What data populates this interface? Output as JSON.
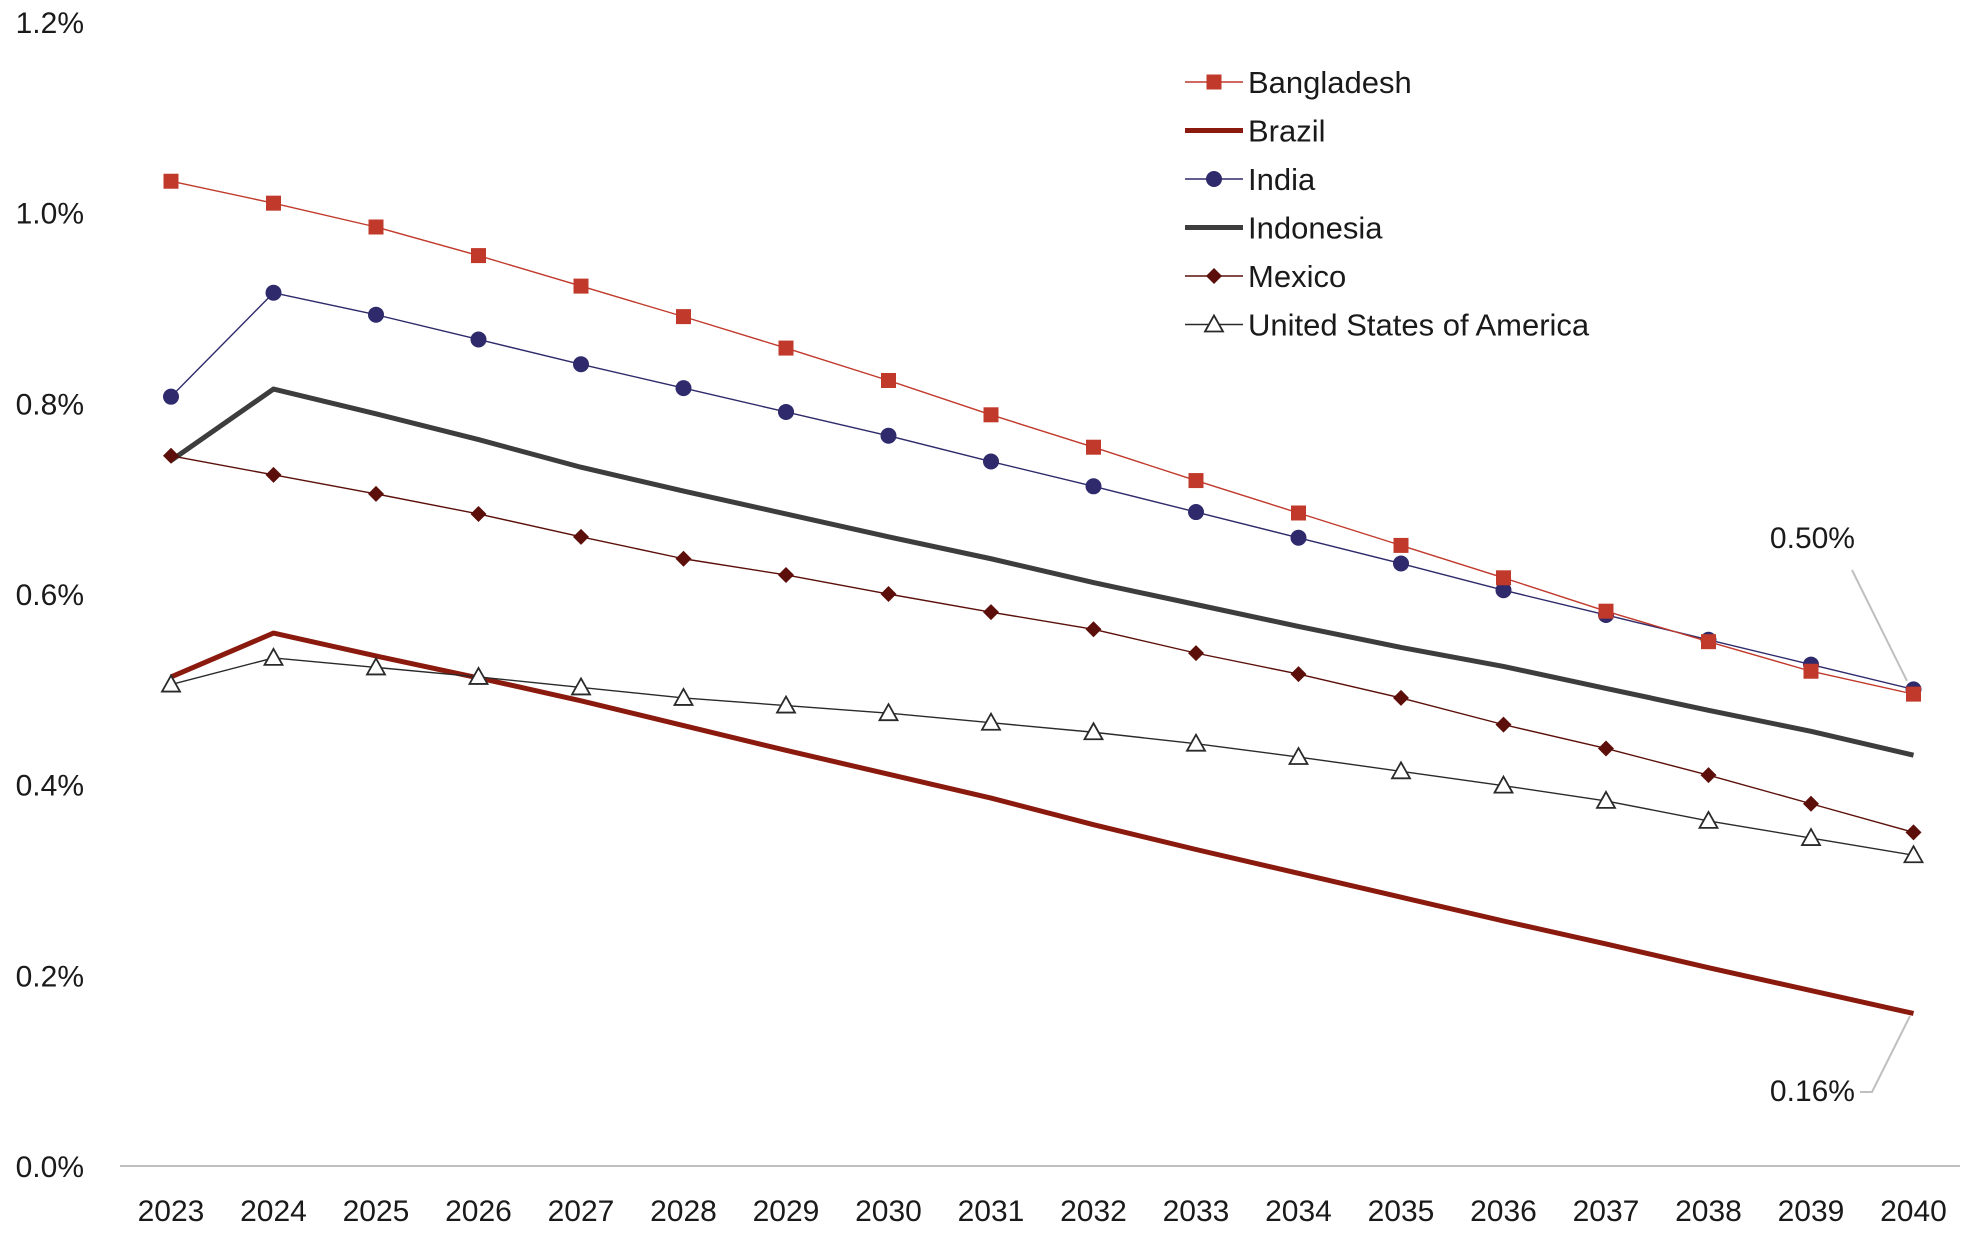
{
  "chart_data": {
    "type": "line",
    "title": "",
    "xlabel": "",
    "ylabel": "",
    "x": [
      "2023",
      "2024",
      "2025",
      "2026",
      "2027",
      "2028",
      "2029",
      "2030",
      "2031",
      "2032",
      "2033",
      "2034",
      "2035",
      "2036",
      "2037",
      "2038",
      "2039",
      "2040"
    ],
    "ylim": [
      0,
      1.2
    ],
    "yticks": [
      0,
      0.2,
      0.4,
      0.6,
      0.8,
      1.0,
      1.2
    ],
    "ytick_labels": [
      "0.0%",
      "0.2%",
      "0.4%",
      "0.6%",
      "0.8%",
      "1.0%",
      "1.2%"
    ],
    "grid": false,
    "legend_position": "top-right",
    "series": [
      {
        "name": "Bangladesh",
        "color": "#c0392b",
        "marker": "square",
        "line": "thin",
        "values": [
          1.033,
          1.01,
          0.985,
          0.955,
          0.923,
          0.891,
          0.858,
          0.824,
          0.788,
          0.754,
          0.719,
          0.685,
          0.651,
          0.617,
          0.582,
          0.55,
          0.519,
          0.495
        ]
      },
      {
        "name": "Brazil",
        "color": "#8b1a0e",
        "marker": "none",
        "line": "thick",
        "values": [
          0.513,
          0.559,
          0.535,
          0.512,
          0.488,
          0.462,
          0.436,
          0.411,
          0.386,
          0.358,
          0.332,
          0.307,
          0.282,
          0.257,
          0.233,
          0.208,
          0.184,
          0.16
        ]
      },
      {
        "name": "India",
        "color": "#2e2a6b",
        "marker": "circle",
        "line": "thin",
        "values": [
          0.807,
          0.916,
          0.893,
          0.867,
          0.841,
          0.816,
          0.791,
          0.766,
          0.739,
          0.713,
          0.686,
          0.659,
          0.632,
          0.604,
          0.578,
          0.552,
          0.526,
          0.5
        ]
      },
      {
        "name": "Indonesia",
        "color": "#3d3d3d",
        "marker": "none",
        "line": "thick",
        "values": [
          0.74,
          0.815,
          0.789,
          0.762,
          0.733,
          0.708,
          0.684,
          0.66,
          0.637,
          0.612,
          0.589,
          0.566,
          0.544,
          0.524,
          0.501,
          0.478,
          0.456,
          0.431
        ]
      },
      {
        "name": "Mexico",
        "color": "#5c0f0a",
        "marker": "diamond",
        "line": "thin",
        "values": [
          0.745,
          0.725,
          0.705,
          0.684,
          0.66,
          0.637,
          0.62,
          0.6,
          0.581,
          0.563,
          0.538,
          0.516,
          0.491,
          0.463,
          0.438,
          0.41,
          0.38,
          0.35
        ]
      },
      {
        "name": "United States of America",
        "color": "#2a2a2a",
        "marker": "triangle",
        "line": "thin",
        "values": [
          0.505,
          0.533,
          0.523,
          0.513,
          0.502,
          0.491,
          0.483,
          0.475,
          0.465,
          0.455,
          0.443,
          0.429,
          0.414,
          0.399,
          0.383,
          0.362,
          0.344,
          0.326
        ]
      }
    ],
    "annotations": [
      {
        "text": "0.50%",
        "series": "India",
        "x": "2040",
        "y": 0.5
      },
      {
        "text": "0.16%",
        "series": "Brazil",
        "x": "2040",
        "y": 0.16
      }
    ]
  }
}
